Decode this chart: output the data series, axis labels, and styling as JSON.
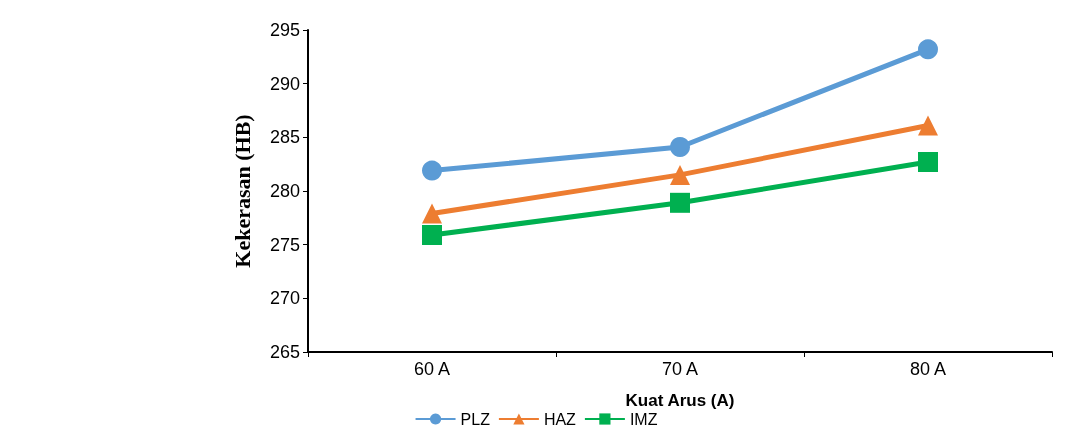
{
  "chart_data": {
    "type": "line",
    "xlabel": "Kuat Arus (A)",
    "ylabel": "Kekerasan (HB)",
    "categories": [
      "60 A",
      "70 A",
      "80 A"
    ],
    "series": [
      {
        "name": "PLZ",
        "color": "#5b9bd5",
        "marker": "circle",
        "values": [
          281.9,
          284.1,
          293.2
        ]
      },
      {
        "name": "HAZ",
        "color": "#ed7d31",
        "marker": "triangle",
        "values": [
          277.9,
          281.5,
          286.1
        ]
      },
      {
        "name": "IMZ",
        "color": "#00b050",
        "marker": "square",
        "values": [
          275.9,
          278.9,
          282.7
        ]
      }
    ],
    "ylim": [
      265,
      295
    ],
    "yticks": [
      265,
      270,
      275,
      280,
      285,
      290,
      295
    ],
    "grid": false,
    "legend": "bottom"
  }
}
